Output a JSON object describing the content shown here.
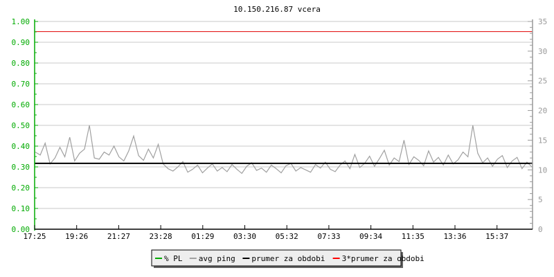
{
  "chart_data": {
    "type": "line",
    "title": "10.150.216.87 vcera",
    "x_tick_labels": [
      "17:25",
      "19:26",
      "21:27",
      "23:28",
      "01:29",
      "03:30",
      "05:32",
      "07:33",
      "09:34",
      "11:35",
      "13:36",
      "15:37"
    ],
    "y_left": {
      "ylim": [
        0,
        1
      ],
      "tick_labels": [
        "0.00",
        "0.10",
        "0.20",
        "0.30",
        "0.40",
        "0.50",
        "0.60",
        "0.70",
        "0.80",
        "0.90",
        "1.00"
      ],
      "color": "#00aa00"
    },
    "y_right": {
      "ylim": [
        0,
        35
      ],
      "tick_labels": [
        "0",
        "5",
        "10",
        "15",
        "20",
        "25",
        "30",
        "35"
      ],
      "color": "#999999"
    },
    "grid": true,
    "legend_position": "bottom",
    "legend": [
      {
        "label": "% PL",
        "color": "#00aa00"
      },
      {
        "label": "avg ping",
        "color": "#a0a0a0"
      },
      {
        "label": "prumer za obdobi",
        "color": "#000000"
      },
      {
        "label": "3*prumer za obdobi",
        "color": "#ff0000"
      }
    ],
    "series": [
      {
        "name": "% PL",
        "axis": "left",
        "values": [
          0,
          0
        ]
      },
      {
        "name": "avg ping",
        "axis": "right",
        "values": [
          13,
          12.5,
          14.5,
          11,
          12,
          13.8,
          12.2,
          15.5,
          11.5,
          12.8,
          13.5,
          17.5,
          12,
          11.8,
          13,
          12.5,
          14,
          12.2,
          11.5,
          13.2,
          15.7,
          12.4,
          11.6,
          13.5,
          12,
          14.3,
          11,
          10.2,
          9.8,
          10.5,
          11.4,
          9.6,
          10.1,
          10.8,
          9.5,
          10.3,
          11,
          9.8,
          10.4,
          9.7,
          10.9,
          10.1,
          9.4,
          10.6,
          11.2,
          9.9,
          10.3,
          9.6,
          10.8,
          10.2,
          9.5,
          10.7,
          11.1,
          9.8,
          10.4,
          10,
          9.6,
          10.9,
          10.3,
          11.3,
          10.1,
          9.7,
          10.8,
          11.5,
          10.2,
          12.6,
          10.4,
          11.1,
          12.3,
          10.6,
          11.9,
          13.3,
          10.8,
          12,
          11.4,
          15,
          10.9,
          12.2,
          11.6,
          10.7,
          13.2,
          11.3,
          12.1,
          10.8,
          12.5,
          11,
          11.7,
          13,
          12.2,
          17.5,
          12.8,
          11.2,
          12,
          10.6,
          11.8,
          12.4,
          10.4,
          11.5,
          12.1,
          10.2,
          11.3,
          10.5
        ]
      },
      {
        "name": "prumer za obdobi",
        "axis": "right",
        "value": 11.1
      },
      {
        "name": "3*prumer za obdobi",
        "axis": "right",
        "value": 33.3
      }
    ]
  }
}
